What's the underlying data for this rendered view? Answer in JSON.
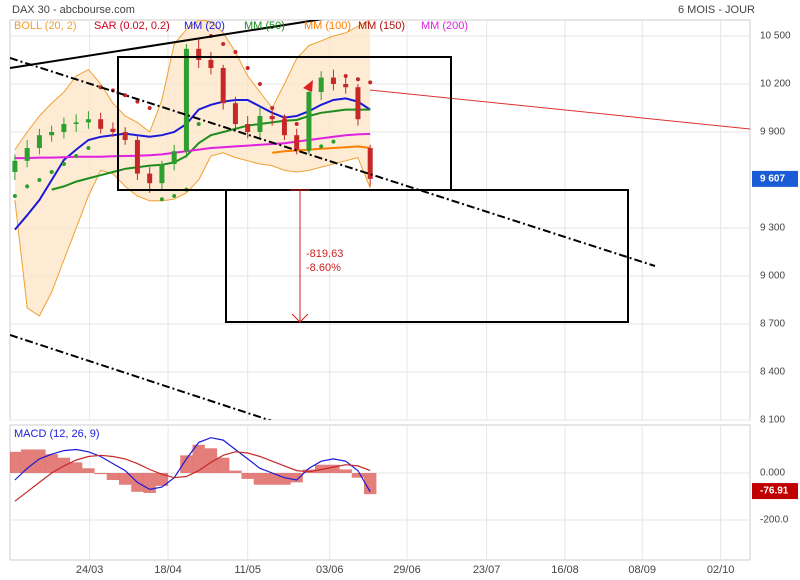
{
  "chart_data": {
    "type": "candlestick",
    "title": "DAX 30 - abcbourse.com",
    "subtitle": "6 MOIS - JOUR",
    "xlim": [
      -0.4,
      60
    ],
    "xticks": [
      {
        "value": 6.1,
        "label": "24/03"
      },
      {
        "value": 12.5,
        "label": "18/04"
      },
      {
        "value": 19,
        "label": "11/05"
      },
      {
        "value": 25.7,
        "label": "03/06"
      },
      {
        "value": 32,
        "label": "29/06"
      },
      {
        "value": 38.5,
        "label": "23/07"
      },
      {
        "value": 44.9,
        "label": "16/08"
      },
      {
        "value": 51.2,
        "label": "08/09"
      },
      {
        "value": 57.6,
        "label": "02/10"
      }
    ],
    "ylim": [
      8100,
      10600
    ],
    "yticks": [
      {
        "value": 8100,
        "label": "8 100"
      },
      {
        "value": 8400,
        "label": "8 400"
      },
      {
        "value": 8700,
        "label": "8 700"
      },
      {
        "value": 9000,
        "label": "9 000"
      },
      {
        "value": 9300,
        "label": "9 300"
      },
      {
        "value": 9900,
        "label": "9 900"
      },
      {
        "value": 10200,
        "label": "10 200"
      },
      {
        "value": 10500,
        "label": "10 500"
      }
    ],
    "grid": true,
    "up_color": "#2e9e2e",
    "down_color": "#c62828",
    "open": [
      9650,
      9720,
      9800,
      9880,
      9900,
      9950,
      9960,
      9980,
      9920,
      9900,
      9850,
      9640,
      9580,
      9700,
      9780,
      10420,
      10350,
      10300,
      10080,
      9950,
      9900,
      10000,
      9980,
      9880,
      9790,
      10150,
      10240,
      10200,
      10180,
      9800
    ],
    "high": [
      9760,
      9850,
      9920,
      9940,
      9990,
      10010,
      10030,
      10020,
      9960,
      9930,
      9880,
      9680,
      9720,
      9820,
      10450,
      10480,
      10400,
      10320,
      10120,
      10000,
      10060,
      10040,
      10010,
      9920,
      10180,
      10280,
      10290,
      10240,
      10200,
      9820
    ],
    "low": [
      9600,
      9680,
      9760,
      9840,
      9860,
      9900,
      9920,
      9890,
      9870,
      9820,
      9600,
      9520,
      9540,
      9660,
      9740,
      10300,
      10260,
      10040,
      9910,
      9860,
      9850,
      9940,
      9850,
      9760,
      9760,
      10100,
      10160,
      10140,
      9940,
      9560
    ],
    "close": [
      9720,
      9800,
      9880,
      9900,
      9950,
      9960,
      9980,
      9920,
      9900,
      9850,
      9640,
      9580,
      9700,
      9780,
      10420,
      10350,
      10300,
      10080,
      9950,
      9900,
      10000,
      9980,
      9880,
      9790,
      10150,
      10240,
      10200,
      10180,
      9980,
      9607
    ],
    "series": [
      {
        "name": "BOLL (20, 2)",
        "color": "#f0a030",
        "upper": [
          9790,
          9900,
          10000,
          10080,
          10150,
          10250,
          10290,
          10200,
          10080,
          10000,
          9960,
          9900,
          10100,
          10450,
          10540,
          10600,
          10590,
          10520,
          10400,
          10250,
          10150,
          10050,
          10200,
          10360,
          10440,
          10470,
          10500,
          10520,
          10560,
          10600
        ],
        "lower": [
          9475,
          8800,
          8750,
          8900,
          9100,
          9300,
          9500,
          9660,
          9640,
          9560,
          9500,
          9470,
          9470,
          9480,
          9520,
          9600,
          9750,
          9770,
          9740,
          9720,
          9700,
          9690,
          9660,
          9650,
          9660,
          9680,
          9700,
          9720,
          9740,
          9550
        ]
      },
      {
        "name": "SAR (0.02, 0.2)",
        "color": "#d0021b",
        "values": [
          9500,
          9560,
          9600,
          9650,
          9700,
          9750,
          9800,
          10180,
          10160,
          10130,
          10090,
          10050,
          9480,
          9500,
          9540,
          9950,
          10500,
          10450,
          10400,
          10300,
          10200,
          10050,
          9990,
          9950,
          9790,
          9810,
          9840,
          10250,
          10230,
          10210
        ]
      },
      {
        "name": "MM (20)",
        "color": "#1a1adb",
        "values": [
          9290,
          9380,
          9475,
          9600,
          9725,
          9790,
          9850,
          9870,
          9880,
          9890,
          9880,
          9870,
          9880,
          9900,
          9950,
          10040,
          10070,
          10090,
          10100,
          10100,
          10060,
          10020,
          9990,
          10000,
          10030,
          10070,
          10100,
          10110,
          10090,
          10040
        ]
      },
      {
        "name": "MM (50)",
        "color": "#1e8c1e",
        "values": [
          null,
          null,
          null,
          9540,
          9560,
          9590,
          9610,
          9630,
          9650,
          9670,
          9680,
          9690,
          9695,
          9710,
          9750,
          9830,
          9880,
          9900,
          9920,
          9940,
          9950,
          9960,
          9970,
          9975,
          10000,
          10020,
          10030,
          10040,
          10040,
          10040
        ]
      },
      {
        "name": "MM (100)",
        "color": "#ff7f00",
        "values": [
          null,
          null,
          null,
          null,
          null,
          null,
          null,
          null,
          null,
          null,
          null,
          null,
          null,
          null,
          null,
          null,
          null,
          null,
          null,
          null,
          null,
          9770,
          9780,
          9785,
          9790,
          9795,
          9800,
          9805,
          9810,
          9800
        ]
      },
      {
        "name": "MM (150)",
        "color": "#b01010",
        "values": [
          null,
          null,
          null,
          null,
          null,
          null,
          null,
          null,
          null,
          null,
          null,
          null,
          null,
          null,
          null,
          null,
          null,
          null,
          null,
          null,
          null,
          null,
          null,
          null,
          null,
          null,
          null,
          null,
          null,
          null
        ]
      },
      {
        "name": "MM (200)",
        "color": "#e020e0",
        "values": [
          9737,
          9737,
          9740,
          9740,
          9742,
          9745,
          9745,
          9745,
          9748,
          9750,
          9752,
          9755,
          9760,
          9770,
          9780,
          9790,
          9800,
          9805,
          9810,
          9815,
          9820,
          9825,
          9830,
          9840,
          9850,
          9860,
          9870,
          9880,
          9885,
          9888
        ]
      }
    ],
    "last_price": {
      "value": 9607,
      "label": "9 607"
    },
    "annotations": [
      "-819.63",
      "-8.60%"
    ],
    "macd": {
      "title": "MACD (12, 26, 9)",
      "ylim": [
        -370,
        204
      ],
      "yticks": [
        {
          "value": -200,
          "label": "-200.0"
        },
        {
          "value": 0,
          "label": "0.000"
        }
      ],
      "macd_color": "#1a1adb",
      "signal_color": "#c62828",
      "hist_color": "#d9534f",
      "macd": [
        -30,
        20,
        60,
        80,
        95,
        100,
        90,
        70,
        40,
        10,
        -40,
        -70,
        -60,
        -20,
        60,
        130,
        150,
        140,
        100,
        60,
        20,
        0,
        -20,
        -30,
        20,
        50,
        60,
        50,
        10,
        -80
      ],
      "signal": [
        -120,
        -80,
        -40,
        0,
        30,
        55,
        70,
        75,
        70,
        60,
        40,
        15,
        -5,
        -20,
        -15,
        10,
        45,
        75,
        90,
        85,
        70,
        50,
        30,
        10,
        5,
        15,
        25,
        35,
        30,
        10
      ],
      "hist": [
        90,
        100,
        100,
        80,
        65,
        45,
        20,
        -5,
        -30,
        -50,
        -80,
        -85,
        -55,
        0,
        75,
        120,
        105,
        65,
        10,
        -25,
        -50,
        -50,
        -50,
        -40,
        15,
        35,
        35,
        15,
        -20,
        -90
      ],
      "last_value": -76.91
    }
  }
}
